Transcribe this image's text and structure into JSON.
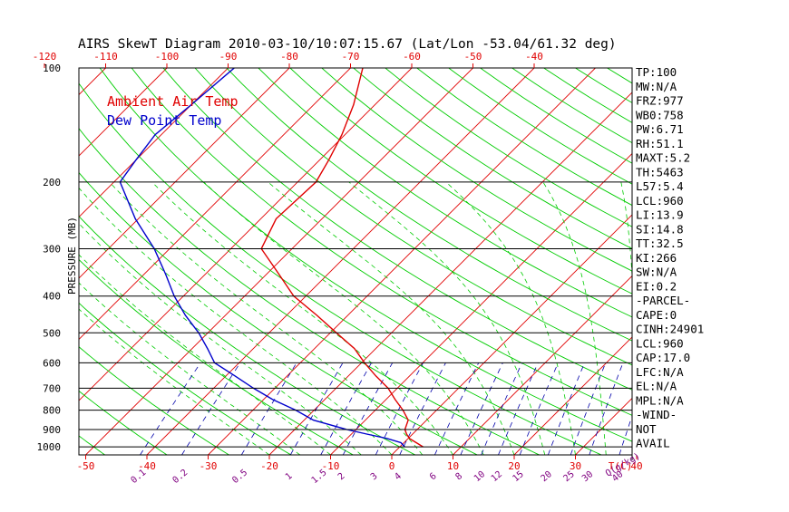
{
  "title": "AIRS SkewT Diagram 2010-03-10/10:07:15.67 (Lat/Lon -53.04/61.32 deg)",
  "legend": {
    "items": [
      {
        "label": "Ambient Air Temp",
        "color": "#e00000"
      },
      {
        "label": "Dew Point Temp",
        "color": "#0000cc"
      }
    ]
  },
  "colors": {
    "frame": "#000000",
    "isotherm": "#e00000",
    "dry_adiabat": "#00cc00",
    "moist_adiabat": "#00cc00",
    "mixing_ratio": "#0000aa",
    "temp_axis": "#e00000",
    "mixing_axis": "#800080"
  },
  "chart_data": {
    "type": "line",
    "title": "AIRS SkewT Diagram 2010-03-10/10:07:15.67 (Lat/Lon -53.04/61.32 deg)",
    "xlabel": "T(C)",
    "ylabel": "PRESSURE (MB)",
    "y_scale": "log",
    "y_inverted": true,
    "ylim": [
      1050,
      100
    ],
    "pressure_ticks": [
      100,
      200,
      300,
      400,
      500,
      600,
      700,
      800,
      900,
      1000
    ],
    "pressure_tick_labels": [
      "100",
      "200",
      "300",
      "400",
      "500",
      "600",
      "700",
      "800",
      "900",
      "1000"
    ],
    "bottom_temp_ticks": [
      -50,
      -40,
      -30,
      -20,
      -10,
      0,
      10,
      20,
      30,
      40
    ],
    "bottom_temp_labels": [
      "-50",
      "-40",
      "-30",
      "-20",
      "-10",
      "0",
      "10",
      "20",
      "30",
      "40"
    ],
    "top_temp_ticks": [
      -120,
      -110,
      -100,
      -90,
      -80,
      -70,
      -60,
      -50,
      -40
    ],
    "top_temp_labels": [
      "-120",
      "-110",
      "-100",
      "-90",
      "-80",
      "-70",
      "-60",
      "-50",
      "-40"
    ],
    "mixing_ratio_ticks": [
      0.1,
      0.2,
      0.5,
      1,
      1.5,
      2,
      3,
      4,
      6,
      8,
      10,
      12,
      15,
      20,
      25,
      30,
      40
    ],
    "mixing_ratio_labels": [
      "0.1",
      "0.2",
      "0.5",
      "1",
      "1.5",
      "2",
      "3",
      "4",
      "6",
      "8",
      "10",
      "12",
      "15",
      "20",
      "25",
      "30",
      "40"
    ],
    "mixing_ratio_unit": "Q(g/kg)",
    "series": [
      {
        "name": "Ambient Air Temp",
        "pressure": [
          1000,
          975,
          950,
          925,
          900,
          850,
          800,
          750,
          700,
          650,
          600,
          550,
          500,
          450,
          400,
          350,
          300,
          250,
          200,
          175,
          150,
          125,
          100
        ],
        "temperature": [
          3.8,
          2.0,
          0.2,
          -1.0,
          -2.0,
          -3.0,
          -5.5,
          -8.5,
          -11.5,
          -15.5,
          -19.5,
          -23.5,
          -29.0,
          -35.0,
          -42.0,
          -48.0,
          -55.0,
          -57.5,
          -57.0,
          -58.5,
          -60.5,
          -63.5,
          -68.0
        ]
      },
      {
        "name": "Dew Point Temp",
        "pressure": [
          1000,
          975,
          950,
          925,
          900,
          850,
          800,
          750,
          700,
          650,
          600,
          550,
          500,
          450,
          400,
          350,
          300,
          250,
          200,
          175,
          150,
          125,
          100
        ],
        "temperature": [
          0.8,
          -0.5,
          -3.5,
          -7.5,
          -11.5,
          -18.5,
          -23.0,
          -28.5,
          -33.5,
          -38.5,
          -44.0,
          -47.5,
          -51.5,
          -56.5,
          -61.5,
          -66.5,
          -72.5,
          -80.5,
          -89.0,
          -90.0,
          -91.0,
          -90.0,
          -89.0
        ]
      }
    ]
  },
  "indices": [
    "TP:100",
    "MW:N/A",
    "FRZ:977",
    "WB0:758",
    "PW:6.71",
    "RH:51.1",
    "MAXT:5.2",
    "TH:5463",
    "L57:5.4",
    "LCL:960",
    "LI:13.9",
    "SI:14.8",
    "TT:32.5",
    "KI:266",
    "SW:N/A",
    "EI:0.2",
    "-PARCEL-",
    "CAPE:0",
    "CINH:24901",
    "LCL:960",
    "CAP:17.0",
    "LFC:N/A",
    "EL:N/A",
    "MPL:N/A",
    "-WIND-",
    "NOT",
    "AVAIL"
  ]
}
